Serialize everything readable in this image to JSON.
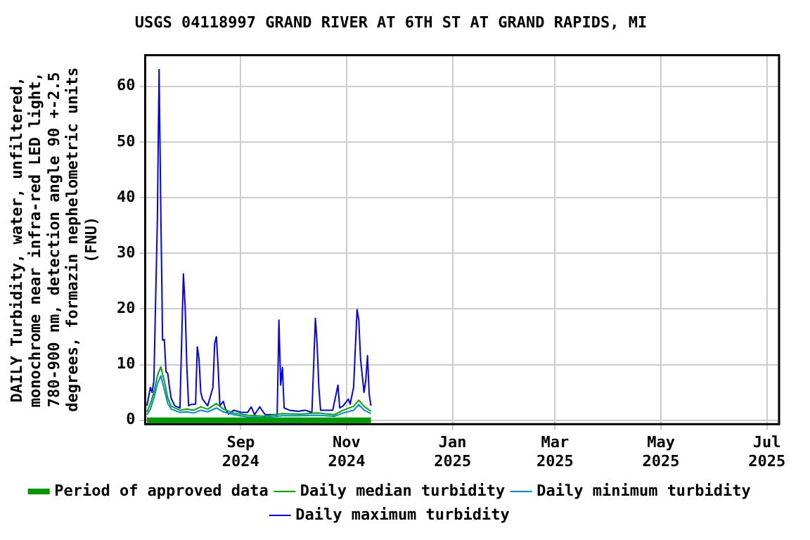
{
  "chart_data": {
    "type": "line",
    "title": "USGS 04118997 GRAND RIVER AT 6TH ST AT GRAND RAPIDS, MI",
    "ylabel": "DAILY Turbidity, water, unfiltered, monochrome near infra-red LED light, 780-900 nm, detection angle 90 +-2.5 degrees, formazin nephelometric units (FNU)",
    "xlim": [
      "2024-07-08",
      "2025-07-08"
    ],
    "xticks": [
      {
        "value": "2024-09-01",
        "label": "Sep 2024"
      },
      {
        "value": "2024-11-01",
        "label": "Nov 2024"
      },
      {
        "value": "2025-01-01",
        "label": "Jan 2025"
      },
      {
        "value": "2025-03-01",
        "label": "Mar 2025"
      },
      {
        "value": "2025-05-01",
        "label": "May 2025"
      },
      {
        "value": "2025-07-01",
        "label": "Jul 2025"
      }
    ],
    "ylim": [
      -0.7,
      65.6
    ],
    "yticks": [
      0,
      10,
      20,
      30,
      40,
      50,
      60
    ],
    "grid": true,
    "legend": "bottom",
    "marker": "none",
    "series": [
      {
        "name": "Daily maximum turbidity",
        "color": "#0000ff",
        "x": [
          "2024-07-09",
          "2024-07-11",
          "2024-07-12",
          "2024-07-13",
          "2024-07-15",
          "2024-07-16",
          "2024-07-17",
          "2024-07-18",
          "2024-07-19",
          "2024-07-20",
          "2024-07-21",
          "2024-07-22",
          "2024-07-23",
          "2024-07-25",
          "2024-07-28",
          "2024-07-30",
          "2024-07-31",
          "2024-08-01",
          "2024-08-02",
          "2024-08-03",
          "2024-08-06",
          "2024-08-07",
          "2024-08-08",
          "2024-08-09",
          "2024-08-10",
          "2024-08-13",
          "2024-08-16",
          "2024-08-17",
          "2024-08-18",
          "2024-08-19",
          "2024-08-20",
          "2024-08-22",
          "2024-08-23",
          "2024-08-25",
          "2024-08-28",
          "2024-09-01",
          "2024-09-05",
          "2024-09-07",
          "2024-09-09",
          "2024-09-12",
          "2024-09-15",
          "2024-09-20",
          "2024-09-22",
          "2024-09-23",
          "2024-09-24",
          "2024-09-25",
          "2024-09-26",
          "2024-09-29",
          "2024-10-04",
          "2024-10-08",
          "2024-10-12",
          "2024-10-14",
          "2024-10-15",
          "2024-10-16",
          "2024-10-17",
          "2024-10-21",
          "2024-10-24",
          "2024-10-27",
          "2024-10-28",
          "2024-10-30",
          "2024-11-02",
          "2024-11-03",
          "2024-11-05",
          "2024-11-07",
          "2024-11-08",
          "2024-11-09",
          "2024-11-11",
          "2024-11-12",
          "2024-11-13",
          "2024-11-14",
          "2024-11-15"
        ],
        "values": [
          2.6,
          5.9,
          5.0,
          7.1,
          35.9,
          63,
          37.6,
          14.4,
          14.5,
          8.7,
          8.4,
          5.9,
          3.9,
          2.6,
          2.2,
          26.3,
          20.5,
          9.5,
          2.6,
          2.8,
          2.9,
          13.2,
          11.0,
          5.0,
          3.8,
          2.6,
          5.9,
          13.8,
          15.0,
          9.5,
          2.6,
          3.4,
          2.2,
          1.1,
          1.8,
          1.4,
          1.4,
          2.4,
          1.0,
          2.4,
          1.0,
          1.0,
          1.0,
          18.0,
          6.3,
          9.5,
          2.2,
          1.8,
          1.6,
          1.8,
          1.4,
          18.3,
          13.6,
          5.9,
          1.8,
          1.8,
          1.8,
          6.3,
          2.2,
          2.6,
          3.8,
          2.9,
          5.9,
          19.9,
          18.0,
          11.0,
          5.0,
          7.1,
          11.6,
          4.6,
          2.6
        ]
      },
      {
        "name": "Daily minimum turbidity",
        "color": "#0088dd",
        "x": [
          "2024-07-09",
          "2024-07-11",
          "2024-07-13",
          "2024-07-15",
          "2024-07-17",
          "2024-07-19",
          "2024-07-21",
          "2024-07-23",
          "2024-07-28",
          "2024-08-01",
          "2024-08-05",
          "2024-08-09",
          "2024-08-13",
          "2024-08-18",
          "2024-08-22",
          "2024-08-28",
          "2024-09-05",
          "2024-09-15",
          "2024-09-25",
          "2024-10-05",
          "2024-10-15",
          "2024-10-25",
          "2024-10-30",
          "2024-11-05",
          "2024-11-08",
          "2024-11-11",
          "2024-11-15"
        ],
        "values": [
          1.0,
          2,
          4,
          6.5,
          8,
          5.5,
          3,
          2,
          1.4,
          1.5,
          1.3,
          1.8,
          1.5,
          2.2,
          1.5,
          1.0,
          0.6,
          0.5,
          0.8,
          0.8,
          0.9,
          0.7,
          1.3,
          1.8,
          2.8,
          1.8,
          1.2
        ]
      },
      {
        "name": "Daily median turbidity",
        "color": "#00aa00",
        "x": [
          "2024-07-09",
          "2024-07-11",
          "2024-07-13",
          "2024-07-15",
          "2024-07-17",
          "2024-07-19",
          "2024-07-21",
          "2024-07-23",
          "2024-07-28",
          "2024-08-01",
          "2024-08-05",
          "2024-08-09",
          "2024-08-13",
          "2024-08-18",
          "2024-08-22",
          "2024-08-28",
          "2024-09-05",
          "2024-09-15",
          "2024-09-25",
          "2024-10-05",
          "2024-10-15",
          "2024-10-25",
          "2024-10-30",
          "2024-11-05",
          "2024-11-08",
          "2024-11-11",
          "2024-11-15"
        ],
        "values": [
          1.5,
          3,
          5,
          8,
          9.6,
          7,
          4,
          2.5,
          1.8,
          2.0,
          1.8,
          2.4,
          2.0,
          3.0,
          2.0,
          1.3,
          0.9,
          0.7,
          1.2,
          1.1,
          1.3,
          1.0,
          1.8,
          2.5,
          3.6,
          2.5,
          1.6
        ]
      },
      {
        "name": "Period of approved data",
        "color": "#009900",
        "x": [
          "2024-07-09",
          "2024-11-15"
        ],
        "values": [
          0,
          0
        ]
      }
    ]
  }
}
